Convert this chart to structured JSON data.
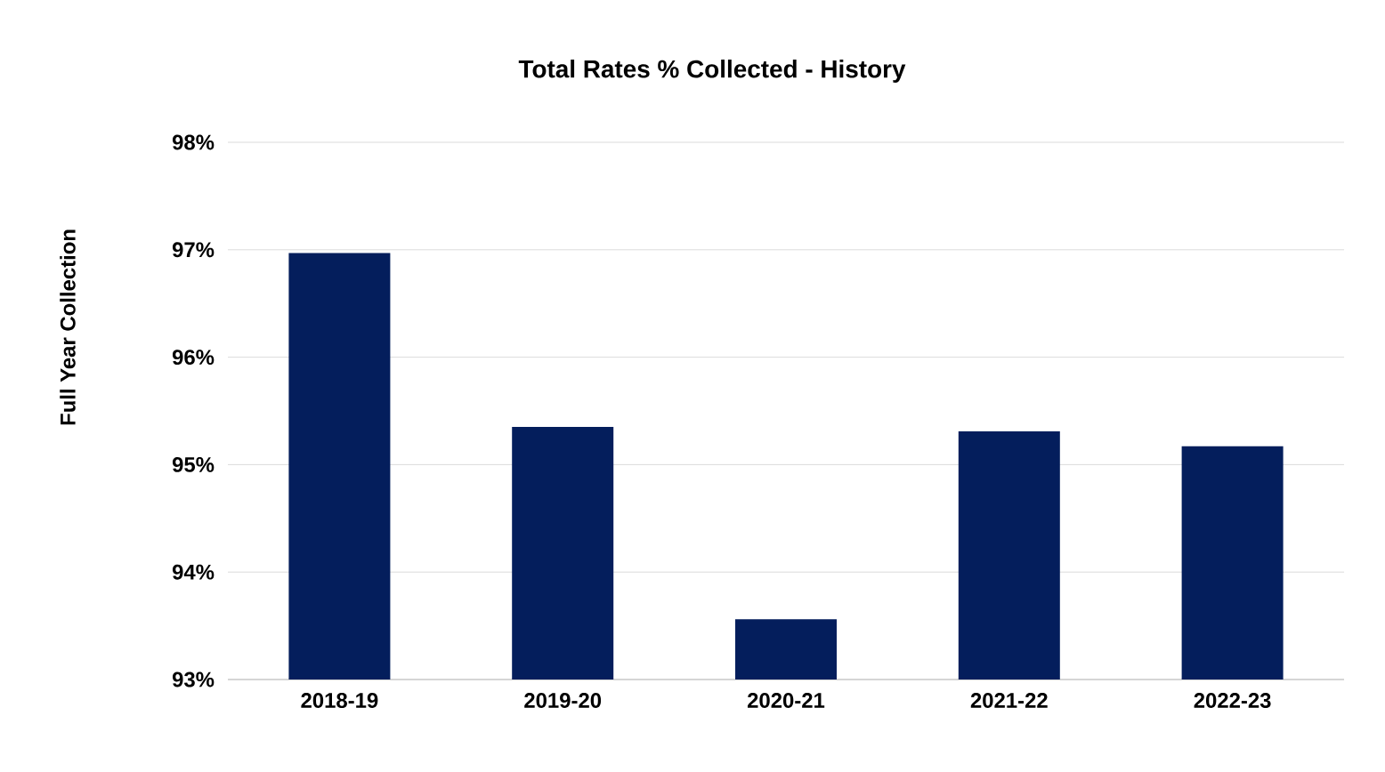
{
  "chart_data": {
    "type": "bar",
    "title": "Total Rates % Collected - History",
    "ylabel": "Full Year Collection",
    "categories": [
      "2018-19",
      "2019-20",
      "2020-21",
      "2021-22",
      "2022-23"
    ],
    "values": [
      96.97,
      95.35,
      93.56,
      95.31,
      95.17
    ],
    "color": "#041e5c",
    "ylim": [
      93,
      98
    ],
    "yticks": [
      {
        "value": 93,
        "label": "93%"
      },
      {
        "value": 94,
        "label": "94%"
      },
      {
        "value": 95,
        "label": "95%"
      },
      {
        "value": 96,
        "label": "96%"
      },
      {
        "value": 97,
        "label": "97%"
      },
      {
        "value": 98,
        "label": "98%"
      }
    ],
    "grid": "y"
  }
}
